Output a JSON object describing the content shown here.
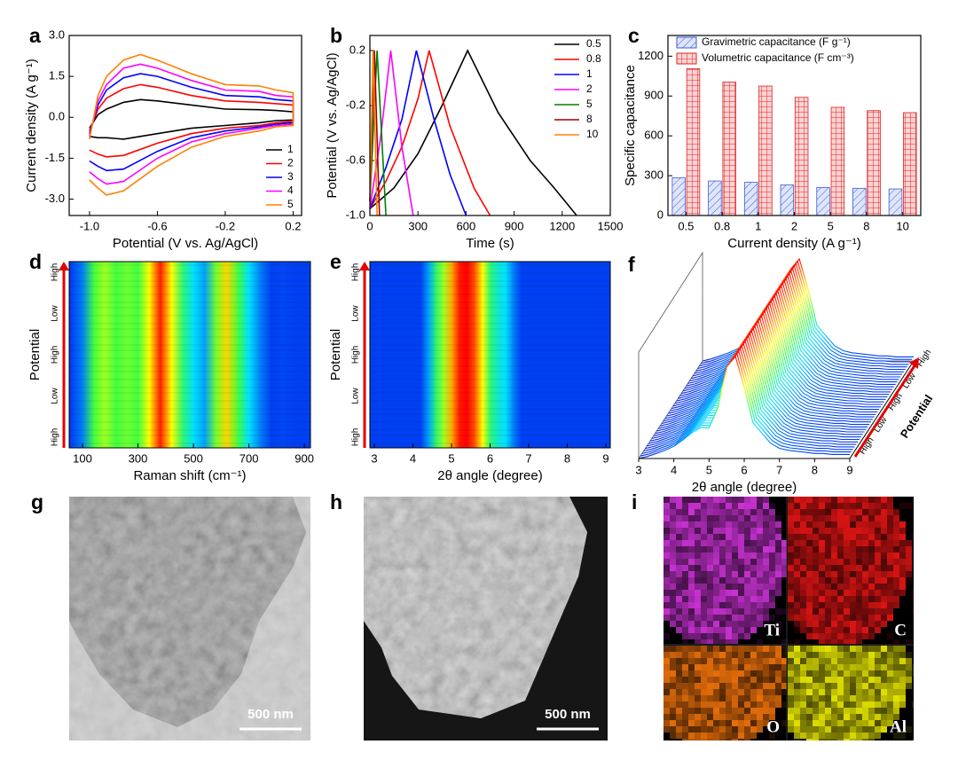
{
  "chart_data": [
    {
      "label": "a",
      "type": "line",
      "x": [
        -1.0,
        -0.95,
        -0.9,
        -0.8,
        -0.7,
        -0.6,
        -0.4,
        -0.2,
        0,
        0.1,
        0.2,
        0.2,
        0.1,
        0,
        -0.2,
        -0.4,
        -0.6,
        -0.8,
        -0.9,
        -0.95,
        -1.0
      ],
      "series": [
        {
          "name": "1",
          "color": "#000000",
          "values": [
            -0.4,
            0.1,
            0.3,
            0.55,
            0.65,
            0.6,
            0.45,
            0.3,
            0.28,
            0.25,
            0.2,
            -0.1,
            -0.12,
            -0.2,
            -0.3,
            -0.4,
            -0.6,
            -0.8,
            -0.75,
            -0.75,
            -0.7
          ]
        },
        {
          "name": "2",
          "color": "#ff0000",
          "values": [
            -0.5,
            0.3,
            0.7,
            1.05,
            1.2,
            1.1,
            0.8,
            0.6,
            0.55,
            0.5,
            0.45,
            -0.15,
            -0.2,
            -0.3,
            -0.4,
            -0.6,
            -0.95,
            -1.4,
            -1.45,
            -1.35,
            -1.2
          ]
        },
        {
          "name": "3",
          "color": "#0000ff",
          "values": [
            -0.6,
            0.45,
            1.0,
            1.45,
            1.6,
            1.5,
            1.1,
            0.8,
            0.75,
            0.65,
            0.6,
            -0.2,
            -0.25,
            -0.35,
            -0.5,
            -0.75,
            -1.25,
            -1.9,
            -1.95,
            -1.8,
            -1.6
          ]
        },
        {
          "name": "4",
          "color": "#ff00ff",
          "values": [
            -0.7,
            0.6,
            1.2,
            1.8,
            1.95,
            1.8,
            1.35,
            1.0,
            0.95,
            0.8,
            0.75,
            -0.25,
            -0.3,
            -0.4,
            -0.6,
            -0.9,
            -1.5,
            -2.35,
            -2.45,
            -2.25,
            -2.0
          ]
        },
        {
          "name": "5",
          "color": "#ff8000",
          "values": [
            -0.8,
            0.8,
            1.5,
            2.1,
            2.3,
            2.1,
            1.6,
            1.2,
            1.15,
            1.0,
            0.9,
            -0.3,
            -0.35,
            -0.5,
            -0.7,
            -1.1,
            -1.8,
            -2.7,
            -2.85,
            -2.6,
            -2.3
          ]
        }
      ],
      "xlim": [
        -1.12,
        0.25
      ],
      "xticks": [
        {
          "value": -1,
          "label": "-1.0"
        },
        -0.6,
        -0.2,
        0.2
      ],
      "ylim": [
        -3.6,
        3.0
      ],
      "yticks": [
        {
          "value": -3,
          "label": "-3.0"
        },
        -1.5,
        {
          "value": 0,
          "label": "0.0"
        },
        1.5,
        {
          "value": 3,
          "label": "3.0"
        }
      ],
      "xlabel": "Potential (V vs. Ag/AgCl)",
      "ylabel": "Current density (A g⁻¹)",
      "legend": "lower right"
    },
    {
      "label": "b",
      "type": "line",
      "series": [
        {
          "name": "0.5",
          "color": "#000000",
          "x": [
            0,
            150,
            300,
            450,
            610,
            800,
            1000,
            1150,
            1290
          ],
          "values": [
            -0.95,
            -0.8,
            -0.55,
            -0.2,
            0.2,
            -0.25,
            -0.6,
            -0.8,
            -1.0
          ]
        },
        {
          "name": "0.8",
          "color": "#ff0000",
          "x": [
            0,
            100,
            200,
            300,
            370,
            500,
            650,
            750
          ],
          "values": [
            -0.95,
            -0.75,
            -0.5,
            -0.15,
            0.2,
            -0.35,
            -0.8,
            -1.0
          ]
        },
        {
          "name": "1",
          "color": "#0000ff",
          "x": [
            0,
            100,
            200,
            290,
            400,
            500,
            600
          ],
          "values": [
            -0.95,
            -0.65,
            -0.3,
            0.2,
            -0.3,
            -0.7,
            -1.0
          ]
        },
        {
          "name": "2",
          "color": "#ff00ff",
          "x": [
            0,
            65,
            130,
            200,
            270
          ],
          "values": [
            -0.95,
            -0.45,
            0.2,
            -0.5,
            -1.0
          ]
        },
        {
          "name": "5",
          "color": "#008000",
          "x": [
            0,
            45,
            100
          ],
          "values": [
            -0.9,
            0.2,
            -1.0
          ]
        },
        {
          "name": "8",
          "color": "#a00000",
          "x": [
            0,
            28,
            60
          ],
          "values": [
            -0.9,
            0.2,
            -1.0
          ]
        },
        {
          "name": "10",
          "color": "#ff8000",
          "x": [
            0,
            20,
            45
          ],
          "values": [
            -0.9,
            0.2,
            -1.0
          ]
        }
      ],
      "xlim": [
        0,
        1500
      ],
      "xticks": [
        0,
        300,
        600,
        900,
        1200,
        1500
      ],
      "ylim": [
        -1.0,
        0.31
      ],
      "yticks": [
        {
          "value": -1,
          "label": "-1.0"
        },
        -0.6,
        -0.2,
        0.2
      ],
      "xlabel": "Time (s)",
      "ylabel": "Potential (V vs. Ag/AgCl)",
      "legend": "upper right"
    },
    {
      "label": "c",
      "type": "bar",
      "categories": [
        "0.5",
        "0.8",
        "1",
        "2",
        "5",
        "8",
        "10"
      ],
      "series": [
        {
          "name": "Gravimetric capacitance (F g⁻¹)",
          "color": "#3a5bd9",
          "values": [
            285,
            260,
            250,
            230,
            210,
            205,
            200
          ]
        },
        {
          "name": "Volumetric capacitance (F cm⁻³)",
          "color": "#e02020",
          "values": [
            1105,
            1005,
            975,
            890,
            815,
            790,
            775
          ]
        }
      ],
      "ylim": [
        0,
        1356
      ],
      "yticks": [
        0,
        300,
        600,
        900,
        1200
      ],
      "xlabel": "Current density (A g⁻¹)",
      "ylabel": "Specific capacitance",
      "legend": "upper left"
    },
    {
      "label": "d",
      "type": "heatmap",
      "x": [
        60,
        100,
        140,
        180,
        220,
        260,
        300,
        340,
        380,
        420,
        460,
        500,
        540,
        580,
        620,
        660,
        700,
        740,
        780,
        820,
        860,
        900
      ],
      "values": [
        0.05,
        0.15,
        0.5,
        0.6,
        0.5,
        0.55,
        0.5,
        0.7,
        0.97,
        0.7,
        0.45,
        0.3,
        0.2,
        0.55,
        0.75,
        0.5,
        0.3,
        0.15,
        0.05,
        0.06,
        0.05,
        0.05
      ],
      "xlim": [
        52,
        922
      ],
      "xticks": [
        100,
        300,
        500,
        700,
        900
      ],
      "ycategories": [
        "High",
        "Low",
        "High",
        "Low",
        "High"
      ],
      "xlabel": "Raman shift (cm⁻¹)",
      "ylabel": "Potential"
    },
    {
      "label": "e",
      "type": "heatmap",
      "x": [
        4.2,
        4.4,
        4.6,
        4.8,
        5.0,
        5.2,
        5.4,
        5.6,
        5.8,
        6.0,
        6.2,
        6.4,
        6.6,
        6.8
      ],
      "values": [
        0.05,
        0.2,
        0.45,
        0.6,
        0.8,
        0.97,
        1.0,
        0.9,
        0.7,
        0.45,
        0.35,
        0.3,
        0.15,
        0.05
      ],
      "xlim": [
        2.885,
        9.115
      ],
      "xticks": [
        3,
        4,
        5,
        6,
        7,
        8,
        9
      ],
      "ycategories": [
        "High",
        "Low",
        "High",
        "Low",
        "High"
      ],
      "xlabel": "2θ angle (degree)",
      "ylabel": "Potential"
    },
    {
      "label": "f",
      "type": "waterfall",
      "x": [
        3,
        3.25,
        3.5,
        3.75,
        4,
        4.25,
        4.5,
        4.75,
        5,
        5.25,
        5.5,
        5.75,
        6,
        6.25,
        6.5,
        6.75,
        7,
        7.25,
        7.5,
        7.75,
        8,
        8.25,
        8.5,
        8.75,
        9
      ],
      "values": [
        0,
        0.02,
        0.05,
        0.08,
        0.12,
        0.18,
        0.25,
        0.3,
        0.3,
        0.5,
        0.9,
        1,
        0.7,
        0.35,
        0.25,
        0.15,
        0.1,
        0.08,
        0.07,
        0.06,
        0.05,
        0.05,
        0.04,
        0.04,
        0.04
      ],
      "xlim": [
        3,
        9
      ],
      "xticks": [
        3,
        4,
        5,
        6,
        7,
        8,
        9
      ],
      "zcategories": [
        "High",
        "Low",
        "High",
        "Low",
        "High"
      ],
      "xlabel": "2θ angle (degree)",
      "zlabel": "Potential"
    }
  ],
  "images": [
    {
      "label": "g",
      "scale_bar": "500 nm"
    },
    {
      "label": "h",
      "scale_bar": "500 nm"
    },
    {
      "label": "i",
      "elements": [
        "Ti",
        "C",
        "O",
        "Al"
      ]
    }
  ]
}
